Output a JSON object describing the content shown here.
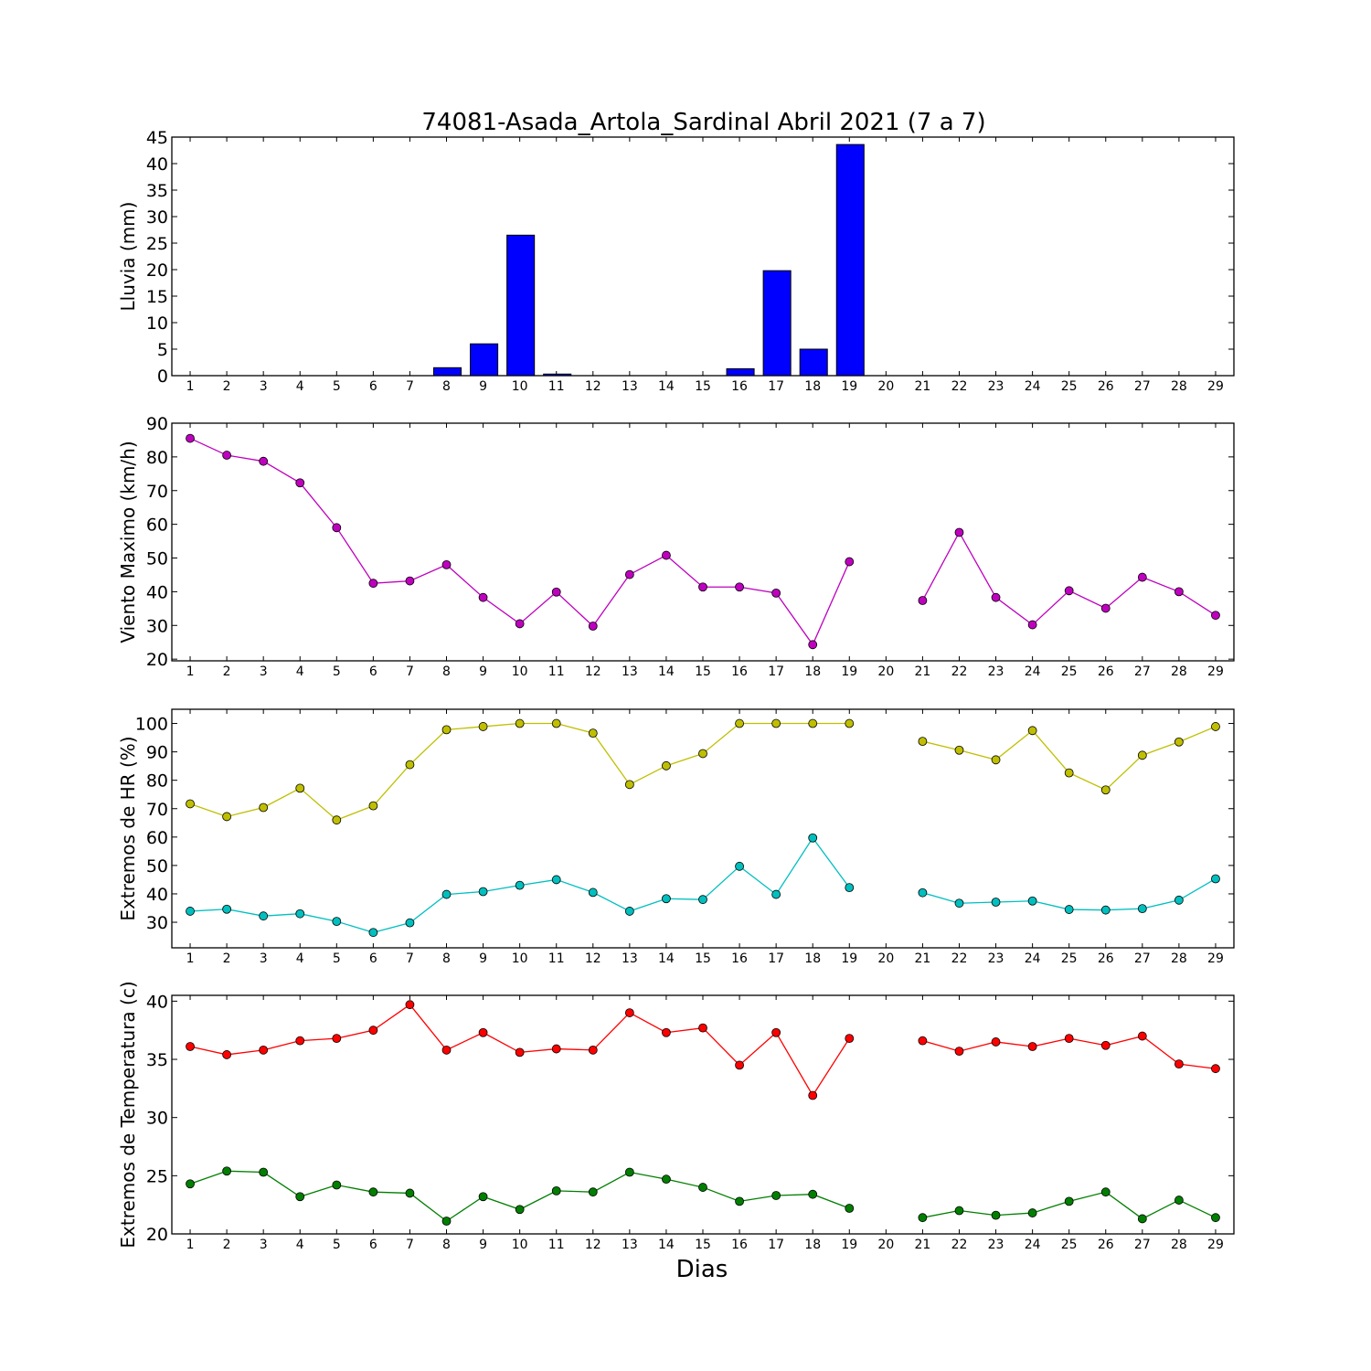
{
  "figure": {
    "title": "74081-Asada_Artola_Sardinal Abril 2021  (7 a 7)",
    "xlabel": "Dias"
  },
  "chart_data": [
    {
      "type": "bar",
      "ylabel": "Lluvia (mm)",
      "categories": [
        1,
        2,
        3,
        4,
        5,
        6,
        7,
        8,
        9,
        10,
        11,
        12,
        13,
        14,
        15,
        16,
        17,
        18,
        19,
        20,
        21,
        22,
        23,
        24,
        25,
        26,
        27,
        28,
        29
      ],
      "values": [
        0,
        0,
        0,
        0,
        0,
        0,
        0,
        1.5,
        6.0,
        26.5,
        0.3,
        0,
        0,
        0,
        0,
        1.3,
        19.8,
        5.0,
        43.6,
        0,
        0,
        0,
        0,
        0,
        0,
        0,
        0,
        0,
        0
      ],
      "ylim": [
        0,
        45
      ],
      "yticks": [
        0,
        5,
        10,
        15,
        20,
        25,
        30,
        35,
        40,
        45
      ],
      "series": [
        {
          "values": [
            0,
            0,
            0,
            0,
            0,
            0,
            0,
            1.5,
            6.0,
            26.5,
            0.3,
            0,
            0,
            0,
            0,
            1.3,
            19.8,
            5.0,
            43.6,
            0,
            0,
            0,
            0,
            0,
            0,
            0,
            0,
            0,
            0
          ],
          "color": "#0000ff"
        }
      ]
    },
    {
      "type": "line",
      "ylabel": "Viento Maximo (km/h)",
      "x": [
        1,
        2,
        3,
        4,
        5,
        6,
        7,
        8,
        9,
        10,
        11,
        12,
        13,
        14,
        15,
        16,
        17,
        18,
        19,
        20,
        21,
        22,
        23,
        24,
        25,
        26,
        27,
        28,
        29
      ],
      "ylim": [
        19.5,
        90
      ],
      "yticks": [
        20,
        30,
        40,
        50,
        60,
        70,
        80,
        90
      ],
      "series": [
        {
          "color": "#bf00bf",
          "values": [
            85.5,
            80.5,
            78.7,
            72.3,
            59.0,
            42.5,
            43.2,
            48.0,
            38.3,
            30.5,
            39.9,
            29.8,
            45.1,
            50.8,
            41.4,
            41.4,
            39.6,
            24.3,
            48.9,
            null,
            37.4,
            57.6,
            38.3,
            30.2,
            40.3,
            35.1,
            44.3,
            40.0,
            33.0
          ]
        }
      ]
    },
    {
      "type": "line",
      "ylabel": "Extremos de HR (%)",
      "x": [
        1,
        2,
        3,
        4,
        5,
        6,
        7,
        8,
        9,
        10,
        11,
        12,
        13,
        14,
        15,
        16,
        17,
        18,
        19,
        20,
        21,
        22,
        23,
        24,
        25,
        26,
        27,
        28,
        29
      ],
      "ylim": [
        21,
        105
      ],
      "yticks": [
        30,
        40,
        50,
        60,
        70,
        80,
        90,
        100
      ],
      "series": [
        {
          "color": "#bfbf00",
          "values": [
            71.7,
            67.2,
            70.4,
            77.2,
            66.0,
            71.0,
            85.5,
            97.8,
            98.9,
            100,
            100,
            96.6,
            78.5,
            85.1,
            89.4,
            100,
            100,
            100,
            100,
            null,
            93.7,
            90.6,
            87.2,
            97.5,
            82.6,
            76.6,
            88.8,
            93.5,
            98.9
          ]
        },
        {
          "color": "#00bfbf",
          "values": [
            33.9,
            34.6,
            32.2,
            33.0,
            30.3,
            26.4,
            29.8,
            39.8,
            40.8,
            43.0,
            45.0,
            40.5,
            33.9,
            38.3,
            38.0,
            49.7,
            39.8,
            59.7,
            42.2,
            null,
            40.4,
            36.7,
            37.1,
            37.5,
            34.5,
            34.3,
            34.8,
            37.8,
            45.3
          ]
        }
      ]
    },
    {
      "type": "line",
      "ylabel": "Extremos de Temperatura (c)",
      "x": [
        1,
        2,
        3,
        4,
        5,
        6,
        7,
        8,
        9,
        10,
        11,
        12,
        13,
        14,
        15,
        16,
        17,
        18,
        19,
        20,
        21,
        22,
        23,
        24,
        25,
        26,
        27,
        28,
        29
      ],
      "ylim": [
        20,
        40.5
      ],
      "yticks": [
        20,
        25,
        30,
        35,
        40
      ],
      "series": [
        {
          "color": "#ff0000",
          "values": [
            36.1,
            35.4,
            35.8,
            36.6,
            36.8,
            37.5,
            39.7,
            35.8,
            37.3,
            35.6,
            35.9,
            35.8,
            39.0,
            37.3,
            37.7,
            34.5,
            37.3,
            31.9,
            36.8,
            null,
            36.6,
            35.7,
            36.5,
            36.1,
            36.8,
            36.2,
            37.0,
            34.6,
            34.2
          ]
        },
        {
          "color": "#007f00",
          "values": [
            24.3,
            25.4,
            25.3,
            23.2,
            24.2,
            23.6,
            23.5,
            21.1,
            23.2,
            22.1,
            23.7,
            23.6,
            25.3,
            24.7,
            24.0,
            22.8,
            23.3,
            23.4,
            22.2,
            null,
            21.4,
            22.0,
            21.6,
            21.8,
            22.8,
            23.6,
            21.3,
            22.9,
            21.4
          ]
        }
      ]
    }
  ]
}
